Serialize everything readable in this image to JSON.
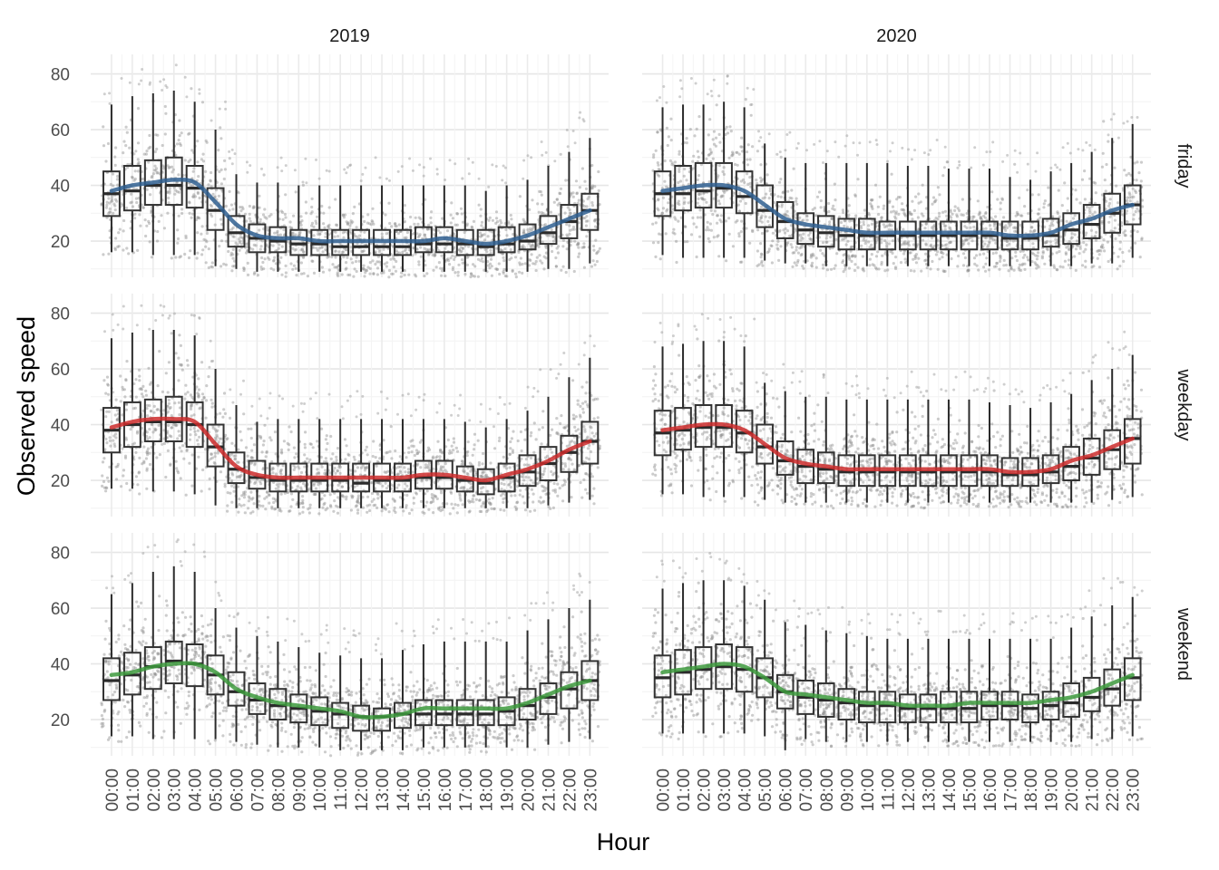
{
  "chart_data": {
    "type": "boxplot",
    "xlabel": "Hour",
    "ylabel": "Observed speed",
    "ylim": [
      7,
      87
    ],
    "yticks": [
      20,
      40,
      60,
      80
    ],
    "grid": true,
    "columns": [
      "2019",
      "2020"
    ],
    "rows": [
      "friday",
      "weekday",
      "weekend"
    ],
    "hours": [
      "00:00",
      "01:00",
      "02:00",
      "03:00",
      "04:00",
      "05:00",
      "06:00",
      "07:00",
      "08:00",
      "09:00",
      "10:00",
      "11:00",
      "12:00",
      "13:00",
      "14:00",
      "15:00",
      "16:00",
      "17:00",
      "18:00",
      "19:00",
      "20:00",
      "21:00",
      "22:00",
      "23:00"
    ],
    "trend_colors": {
      "friday": "#2f5f91",
      "weekday": "#cc2b2b",
      "weekend": "#3d9a3d"
    },
    "panels": [
      {
        "year": "2019",
        "day": "friday",
        "medians": [
          37,
          38,
          40,
          40,
          39,
          31,
          23,
          21,
          20,
          19,
          19,
          18,
          18,
          18,
          18,
          19,
          19,
          19,
          18,
          19,
          20,
          23,
          27,
          31
        ],
        "q1": [
          29,
          31,
          33,
          33,
          32,
          24,
          18,
          16,
          16,
          15,
          15,
          15,
          15,
          15,
          15,
          16,
          16,
          15,
          15,
          16,
          17,
          19,
          21,
          24
        ],
        "q3": [
          45,
          47,
          49,
          50,
          47,
          39,
          29,
          26,
          25,
          24,
          24,
          24,
          24,
          24,
          24,
          25,
          25,
          24,
          24,
          25,
          26,
          29,
          33,
          37
        ],
        "wlow": [
          16,
          16,
          15,
          15,
          15,
          11,
          10,
          9,
          9,
          9,
          9,
          9,
          9,
          9,
          9,
          9,
          9,
          9,
          9,
          9,
          9,
          10,
          10,
          12
        ],
        "whigh": [
          69,
          72,
          73,
          74,
          70,
          60,
          44,
          41,
          41,
          40,
          40,
          40,
          40,
          40,
          40,
          40,
          40,
          40,
          38,
          40,
          42,
          47,
          52,
          57
        ],
        "trend": [
          38,
          40,
          41,
          42,
          41,
          34,
          26,
          22,
          21,
          21,
          20,
          20,
          20,
          20,
          20,
          20,
          21,
          20,
          19,
          20,
          22,
          25,
          28,
          31
        ]
      },
      {
        "year": "2020",
        "day": "friday",
        "medians": [
          37,
          37,
          38,
          39,
          36,
          31,
          27,
          24,
          23,
          22,
          22,
          22,
          22,
          22,
          22,
          22,
          22,
          21,
          21,
          22,
          24,
          26,
          30,
          33
        ],
        "q1": [
          29,
          31,
          32,
          32,
          30,
          25,
          21,
          19,
          18,
          17,
          17,
          17,
          17,
          17,
          17,
          17,
          17,
          17,
          17,
          18,
          19,
          21,
          23,
          26
        ],
        "q3": [
          45,
          47,
          48,
          48,
          45,
          40,
          34,
          30,
          29,
          28,
          28,
          27,
          27,
          27,
          27,
          27,
          27,
          27,
          27,
          28,
          30,
          33,
          37,
          40
        ],
        "wlow": [
          15,
          14,
          14,
          14,
          14,
          13,
          12,
          12,
          11,
          11,
          11,
          11,
          11,
          11,
          11,
          11,
          11,
          11,
          11,
          11,
          11,
          12,
          12,
          14
        ],
        "whigh": [
          68,
          69,
          69,
          70,
          68,
          55,
          50,
          48,
          48,
          48,
          48,
          48,
          47,
          47,
          46,
          46,
          46,
          43,
          42,
          45,
          48,
          52,
          57,
          62
        ],
        "trend": [
          38,
          39,
          40,
          40,
          38,
          33,
          28,
          26,
          25,
          24,
          23,
          23,
          23,
          23,
          23,
          23,
          23,
          22,
          22,
          23,
          26,
          28,
          31,
          33
        ]
      },
      {
        "year": "2019",
        "day": "weekday",
        "medians": [
          38,
          40,
          41,
          41,
          40,
          32,
          24,
          21,
          20,
          20,
          20,
          20,
          19,
          20,
          20,
          21,
          21,
          20,
          19,
          21,
          23,
          26,
          30,
          34
        ],
        "q1": [
          30,
          32,
          34,
          34,
          32,
          25,
          19,
          17,
          16,
          16,
          16,
          16,
          16,
          16,
          16,
          17,
          17,
          16,
          15,
          16,
          18,
          20,
          23,
          26
        ],
        "q3": [
          46,
          48,
          49,
          50,
          48,
          40,
          30,
          27,
          26,
          26,
          26,
          26,
          26,
          26,
          26,
          27,
          27,
          25,
          24,
          26,
          29,
          32,
          36,
          41
        ],
        "wlow": [
          17,
          17,
          16,
          16,
          15,
          11,
          10,
          10,
          10,
          10,
          10,
          10,
          10,
          10,
          10,
          10,
          10,
          10,
          10,
          10,
          10,
          11,
          12,
          13
        ],
        "whigh": [
          71,
          73,
          74,
          74,
          72,
          60,
          47,
          41,
          42,
          42,
          42,
          42,
          42,
          42,
          42,
          42,
          42,
          41,
          39,
          42,
          45,
          50,
          57,
          64
        ],
        "trend": [
          39,
          41,
          42,
          42,
          41,
          33,
          25,
          22,
          21,
          21,
          21,
          21,
          21,
          21,
          21,
          22,
          22,
          21,
          20,
          22,
          24,
          27,
          31,
          34
        ]
      },
      {
        "year": "2020",
        "day": "weekday",
        "medians": [
          37,
          38,
          39,
          39,
          37,
          32,
          27,
          25,
          24,
          23,
          23,
          23,
          23,
          23,
          23,
          23,
          23,
          22,
          22,
          23,
          25,
          28,
          31,
          35
        ],
        "q1": [
          29,
          31,
          32,
          32,
          30,
          26,
          22,
          19,
          19,
          18,
          18,
          18,
          18,
          18,
          18,
          18,
          18,
          18,
          18,
          19,
          20,
          22,
          24,
          26
        ],
        "q3": [
          45,
          46,
          47,
          47,
          45,
          40,
          34,
          31,
          30,
          29,
          29,
          29,
          29,
          29,
          29,
          29,
          29,
          28,
          28,
          29,
          32,
          35,
          38,
          42
        ],
        "wlow": [
          15,
          15,
          14,
          14,
          14,
          13,
          12,
          12,
          12,
          12,
          12,
          12,
          12,
          12,
          12,
          12,
          12,
          12,
          12,
          12,
          12,
          12,
          13,
          14
        ],
        "whigh": [
          68,
          69,
          70,
          70,
          68,
          55,
          52,
          50,
          50,
          49,
          49,
          49,
          49,
          49,
          49,
          49,
          48,
          47,
          46,
          48,
          51,
          56,
          60,
          65
        ],
        "trend": [
          38,
          39,
          40,
          40,
          38,
          33,
          28,
          26,
          25,
          24,
          24,
          24,
          24,
          24,
          24,
          24,
          24,
          23,
          23,
          24,
          27,
          29,
          32,
          35
        ]
      },
      {
        "year": "2019",
        "day": "weekend",
        "medians": [
          34,
          36,
          39,
          41,
          40,
          36,
          30,
          27,
          25,
          24,
          23,
          22,
          21,
          21,
          22,
          22,
          22,
          22,
          22,
          23,
          25,
          28,
          31,
          34
        ],
        "q1": [
          27,
          29,
          31,
          33,
          32,
          29,
          25,
          22,
          20,
          19,
          18,
          17,
          16,
          16,
          17,
          18,
          18,
          18,
          18,
          18,
          20,
          22,
          24,
          27
        ],
        "q3": [
          42,
          44,
          46,
          48,
          47,
          43,
          37,
          33,
          31,
          29,
          28,
          26,
          25,
          24,
          26,
          27,
          27,
          27,
          27,
          28,
          31,
          33,
          37,
          41
        ],
        "wlow": [
          14,
          14,
          13,
          13,
          13,
          13,
          12,
          11,
          10,
          10,
          10,
          9,
          9,
          9,
          9,
          10,
          10,
          10,
          10,
          10,
          10,
          11,
          12,
          13
        ],
        "whigh": [
          65,
          69,
          73,
          75,
          73,
          60,
          53,
          50,
          48,
          46,
          44,
          43,
          42,
          42,
          45,
          47,
          48,
          48,
          48,
          48,
          52,
          56,
          60,
          63
        ],
        "trend": [
          36,
          37,
          39,
          40,
          40,
          37,
          31,
          28,
          26,
          25,
          24,
          23,
          21,
          21,
          22,
          24,
          24,
          24,
          24,
          24,
          26,
          29,
          32,
          34
        ]
      },
      {
        "year": "2020",
        "day": "weekend",
        "medians": [
          35,
          37,
          38,
          39,
          38,
          35,
          30,
          28,
          27,
          26,
          25,
          25,
          24,
          24,
          24,
          24,
          25,
          25,
          24,
          25,
          26,
          28,
          31,
          35
        ],
        "q1": [
          28,
          29,
          31,
          31,
          30,
          28,
          24,
          22,
          21,
          20,
          19,
          19,
          19,
          19,
          19,
          19,
          20,
          20,
          19,
          20,
          21,
          23,
          25,
          27
        ],
        "q3": [
          43,
          45,
          46,
          47,
          46,
          42,
          36,
          34,
          33,
          31,
          30,
          30,
          29,
          29,
          30,
          30,
          30,
          30,
          29,
          30,
          33,
          35,
          38,
          42
        ],
        "wlow": [
          15,
          15,
          15,
          15,
          15,
          14,
          9,
          13,
          12,
          12,
          12,
          12,
          12,
          12,
          12,
          12,
          12,
          12,
          12,
          12,
          12,
          13,
          13,
          14
        ],
        "whigh": [
          67,
          69,
          70,
          70,
          68,
          63,
          55,
          54,
          52,
          51,
          50,
          49,
          49,
          49,
          49,
          49,
          49,
          49,
          49,
          49,
          53,
          57,
          61,
          64
        ],
        "trend": [
          37,
          38,
          39,
          40,
          39,
          35,
          30,
          29,
          28,
          27,
          26,
          26,
          25,
          25,
          25,
          26,
          26,
          26,
          26,
          27,
          28,
          30,
          33,
          36
        ]
      }
    ]
  }
}
